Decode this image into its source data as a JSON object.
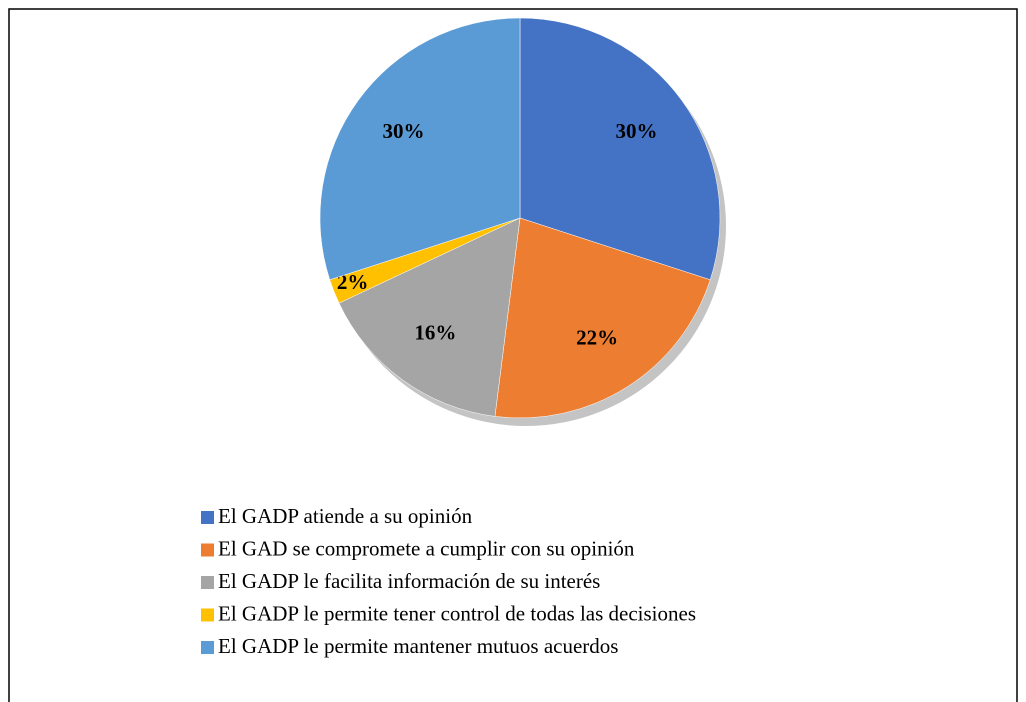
{
  "chart_data": {
    "type": "pie",
    "categories": [
      "El GADP atiende a su opinión",
      "El GAD se compromete a cumplir con su opinión",
      "El GADP le facilita información de su interés",
      "El GADP le permite tener control de todas las decisiones",
      "El GADP le permite mantener mutuos acuerdos"
    ],
    "values": [
      30,
      22,
      16,
      2,
      30
    ],
    "value_labels": [
      "30%",
      "22%",
      "16%",
      "2%",
      "30%"
    ],
    "colors": [
      "#4472c4",
      "#ed7d31",
      "#a5a5a5",
      "#ffc000",
      "#5b9bd5"
    ],
    "legend": "bottom"
  }
}
